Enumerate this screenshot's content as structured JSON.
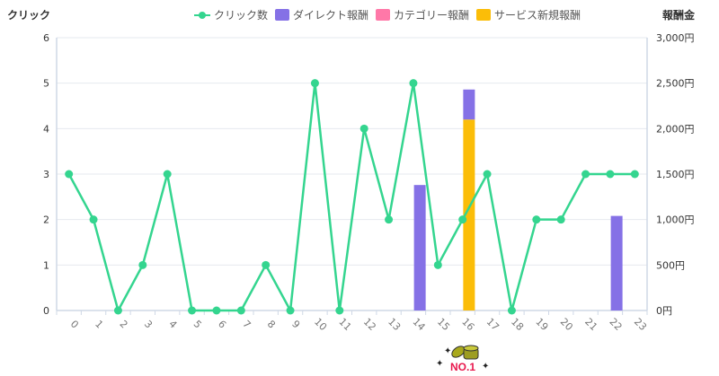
{
  "chart_data": {
    "type": "bar+line",
    "title": "",
    "x_label": "",
    "categories": [
      "0",
      "1",
      "2",
      "3",
      "4",
      "5",
      "6",
      "7",
      "8",
      "9",
      "10",
      "11",
      "12",
      "13",
      "14",
      "15",
      "16",
      "17",
      "18",
      "19",
      "20",
      "21",
      "22",
      "23"
    ],
    "left_axis": {
      "label": "クリック",
      "ticks": [
        "0",
        "1",
        "2",
        "3",
        "4",
        "5",
        "6"
      ],
      "range": [
        0,
        6
      ]
    },
    "right_axis": {
      "label": "報酬金",
      "ticks": [
        "0円",
        "500円",
        "1,000円",
        "1,500円",
        "2,000円",
        "2,500円",
        "3,000円"
      ],
      "range": [
        0,
        3000
      ]
    },
    "legend": [
      {
        "name": "クリック数",
        "type": "line",
        "color": "#34d58f"
      },
      {
        "name": "ダイレクト報酬",
        "type": "bar",
        "color": "#8571e6"
      },
      {
        "name": "カテゴリー報酬",
        "type": "bar",
        "color": "#ff78a8"
      },
      {
        "name": "サービス新規報酬",
        "type": "bar",
        "color": "#fbbd08"
      }
    ],
    "series": [
      {
        "name": "クリック数",
        "type": "line",
        "axis": "left",
        "color": "#34d58f",
        "values": [
          3,
          2,
          0,
          1,
          3,
          0,
          0,
          0,
          1,
          0,
          5,
          0,
          4,
          2,
          5,
          1,
          2,
          3,
          0,
          2,
          2,
          3,
          3,
          3
        ]
      },
      {
        "name": "サービス新規報酬",
        "type": "bar",
        "axis": "right",
        "stack": "reward",
        "color": "#fbbd08",
        "values": [
          0,
          0,
          0,
          0,
          0,
          0,
          0,
          0,
          0,
          0,
          0,
          0,
          0,
          0,
          0,
          0,
          2100,
          0,
          0,
          0,
          0,
          0,
          0,
          0
        ]
      },
      {
        "name": "カテゴリー報酬",
        "type": "bar",
        "axis": "right",
        "stack": "reward",
        "color": "#ff78a8",
        "values": [
          0,
          0,
          0,
          0,
          0,
          0,
          0,
          0,
          0,
          0,
          0,
          0,
          0,
          0,
          0,
          0,
          0,
          0,
          0,
          0,
          0,
          0,
          0,
          0
        ]
      },
      {
        "name": "ダイレクト報酬",
        "type": "bar",
        "axis": "right",
        "stack": "reward",
        "color": "#8571e6",
        "values": [
          0,
          0,
          0,
          0,
          0,
          0,
          0,
          0,
          0,
          0,
          0,
          0,
          0,
          0,
          1380,
          0,
          330,
          0,
          0,
          0,
          0,
          0,
          1040,
          0
        ]
      }
    ],
    "grid": true,
    "legend_position": "top",
    "annotations": [
      {
        "x": "16",
        "text": "NO.1",
        "type": "badge"
      }
    ]
  },
  "axis_labels": {
    "left": "クリック",
    "right": "報酬金"
  },
  "legend": {
    "clicks": "クリック数",
    "direct": "ダイレクト報酬",
    "category": "カテゴリー報酬",
    "service": "サービス新規報酬"
  },
  "colors": {
    "line": "#34d58f",
    "direct": "#8571e6",
    "category": "#ff78a8",
    "service": "#fbbd08",
    "grid": "#e6e9ef",
    "axis": "#cfd8e6"
  },
  "badge": {
    "text": "NO.1"
  }
}
